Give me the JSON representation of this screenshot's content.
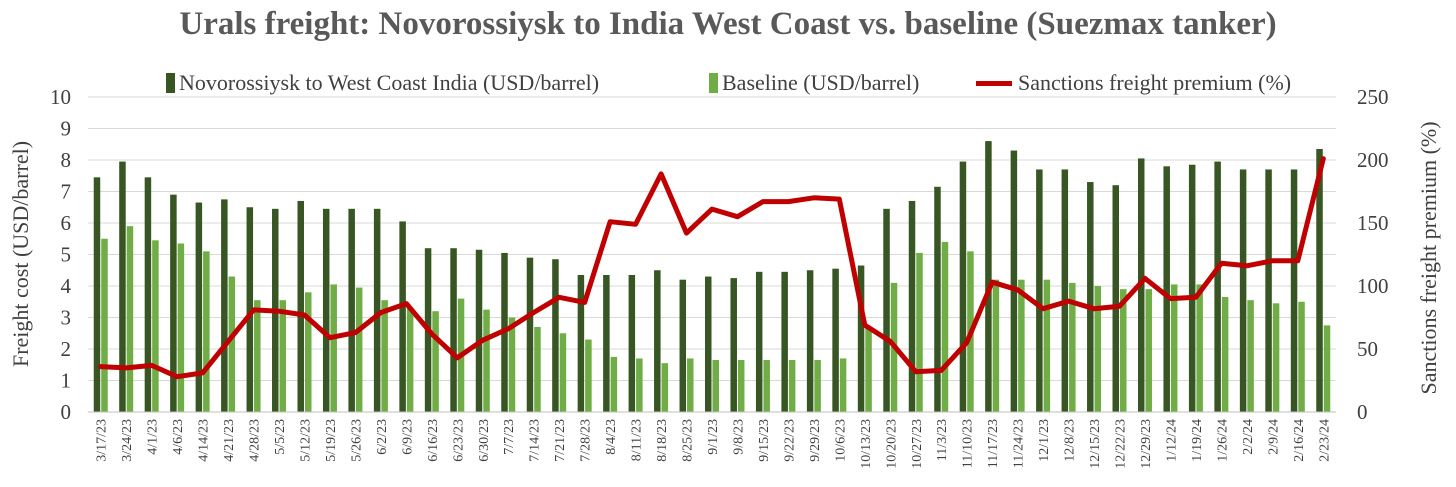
{
  "chart_data": {
    "type": "bar",
    "title": "Urals freight: Novorossiysk to India West Coast vs. baseline (Suezmax tanker)",
    "ylabel": "Freight cost (USD/barrel)",
    "y2label": "Sanctions freight premium (%)",
    "ylim": [
      0,
      10
    ],
    "y2lim": [
      0,
      250
    ],
    "yticks": [
      "0",
      "1",
      "2",
      "3",
      "4",
      "5",
      "6",
      "7",
      "8",
      "9",
      "10"
    ],
    "y2ticks": [
      "0",
      "50",
      "100",
      "150",
      "200",
      "250"
    ],
    "grid": true,
    "legend_position": "top",
    "categories": [
      "3/17/23",
      "3/24/23",
      "4/1/23",
      "4/6/23",
      "4/14/23",
      "4/21/23",
      "4/28/23",
      "5/5/23",
      "5/12/23",
      "5/19/23",
      "5/26/23",
      "6/2/23",
      "6/9/23",
      "6/16/23",
      "6/23/23",
      "6/30/23",
      "7/7/23",
      "7/14/23",
      "7/21/23",
      "7/28/23",
      "8/4/23",
      "8/11/23",
      "8/18/23",
      "8/25/23",
      "9/1/23",
      "9/8/23",
      "9/15/23",
      "9/22/23",
      "9/29/23",
      "10/6/23",
      "10/13/23",
      "10/20/23",
      "10/27/23",
      "11/3/23",
      "11/10/23",
      "11/17/23",
      "11/24/23",
      "12/1/23",
      "12/8/23",
      "12/15/23",
      "12/22/23",
      "12/29/23",
      "1/12/24",
      "1/19/24",
      "1/26/24",
      "2/2/24",
      "2/9/24",
      "2/16/24",
      "2/23/24"
    ],
    "series": [
      {
        "name": "Novorossiysk to West Coast India (USD/barrel)",
        "type": "bar",
        "axis": "left",
        "color": "#375623",
        "values": [
          7.45,
          7.95,
          7.45,
          6.9,
          6.65,
          6.75,
          6.5,
          6.45,
          6.7,
          6.45,
          6.45,
          6.45,
          6.05,
          5.2,
          5.2,
          5.15,
          5.05,
          4.9,
          4.85,
          4.35,
          4.35,
          4.35,
          4.5,
          4.2,
          4.3,
          4.25,
          4.45,
          4.45,
          4.5,
          4.55,
          4.65,
          6.45,
          6.7,
          7.15,
          7.95,
          8.6,
          8.3,
          7.7,
          7.7,
          7.3,
          7.2,
          8.05,
          7.8,
          7.85,
          7.95,
          7.7,
          7.7,
          7.7,
          8.35
        ]
      },
      {
        "name": "Baseline (USD/barrel)",
        "type": "bar",
        "axis": "left",
        "color": "#70AD47",
        "values": [
          5.5,
          5.9,
          5.45,
          5.35,
          5.1,
          4.3,
          3.55,
          3.55,
          3.8,
          4.05,
          3.95,
          3.55,
          3.3,
          3.2,
          3.6,
          3.25,
          3.0,
          2.7,
          2.5,
          2.3,
          1.75,
          1.7,
          1.55,
          1.7,
          1.65,
          1.65,
          1.65,
          1.65,
          1.65,
          1.7,
          2.7,
          4.1,
          5.05,
          5.4,
          5.1,
          4.2,
          4.2,
          4.2,
          4.1,
          4.0,
          3.9,
          3.9,
          4.05,
          4.05,
          3.65,
          3.55,
          3.45,
          3.5,
          2.75
        ]
      },
      {
        "name": "Sanctions freight premium (%)",
        "type": "line",
        "axis": "right",
        "color": "#C00000",
        "values": [
          36,
          35,
          37,
          28,
          31,
          56,
          81,
          80,
          77,
          59,
          63,
          79,
          86,
          62,
          43,
          57,
          66,
          79,
          91,
          87,
          151,
          149,
          189,
          142,
          161,
          155,
          167,
          167,
          170,
          169,
          69,
          56,
          32,
          33,
          55,
          103,
          97,
          82,
          88,
          82,
          84,
          106,
          90,
          91,
          118,
          116,
          120,
          120,
          201
        ]
      }
    ]
  }
}
